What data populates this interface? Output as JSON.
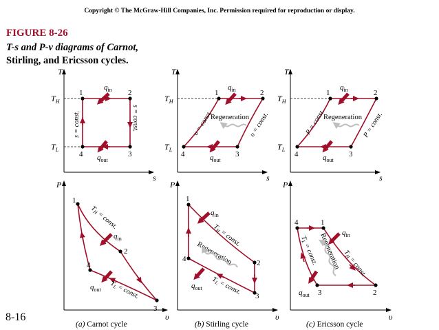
{
  "header": {
    "copyright": "Copyright © The McGraw-Hill Companies, Inc. Permission required for reproduction or display."
  },
  "figure": {
    "number": "FIGURE 8-26",
    "caption_line1": "T-s and P-v diagrams of Carnot,",
    "caption_line2": "Stirling, and Ericsson cycles."
  },
  "page_number": "8-16",
  "colors": {
    "process": "#a0102a",
    "regeneration": "#9a9a9a",
    "axis": "#000000",
    "point": "#000000"
  },
  "axes": {
    "T": "T",
    "s": "s",
    "P": "P",
    "v": "υ",
    "TH": "T",
    "TH_sub": "H",
    "TL": "T",
    "TL_sub": "L"
  },
  "labels": {
    "q": "q",
    "in": "in",
    "out": "out",
    "regeneration": "Regeneration",
    "s_const": "s = const.",
    "v_const": "υ = const.",
    "P_const": "P = const.",
    "TH_const": "T",
    "TH_const_sub": "H",
    "TL_const": "T",
    "TL_const_sub": "L",
    "eq_const": " = const.",
    "points": [
      "1",
      "2",
      "3",
      "4"
    ]
  },
  "captions": {
    "carnot_prefix": "(a)",
    "carnot": " Carnot cycle",
    "stirling_prefix": "(b)",
    "stirling": " Stirling cycle",
    "ericsson_prefix": "(c)",
    "ericsson": " Ericsson cycle"
  }
}
